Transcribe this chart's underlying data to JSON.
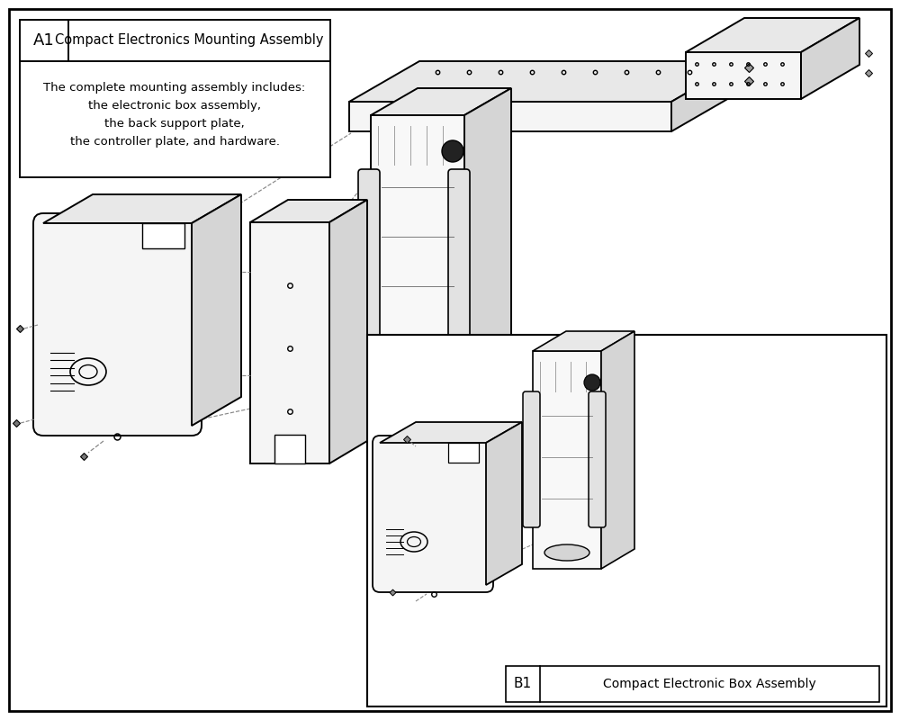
{
  "bg_color": "#ffffff",
  "line_color": "#000000",
  "fill_light": "#f5f5f5",
  "fill_mid": "#e8e8e8",
  "fill_dark": "#d5d5d5",
  "label_A1": "A1",
  "label_A1_title": "Compact Electronics Mounting Assembly",
  "label_A1_body": "The complete mounting assembly includes:\nthe electronic box assembly,\nthe back support plate,\nthe controller plate, and hardware.",
  "label_B1": "B1",
  "label_B1_title": "Compact Electronic Box Assembly",
  "dashed_color": "#888888",
  "figsize": [
    10,
    8
  ]
}
